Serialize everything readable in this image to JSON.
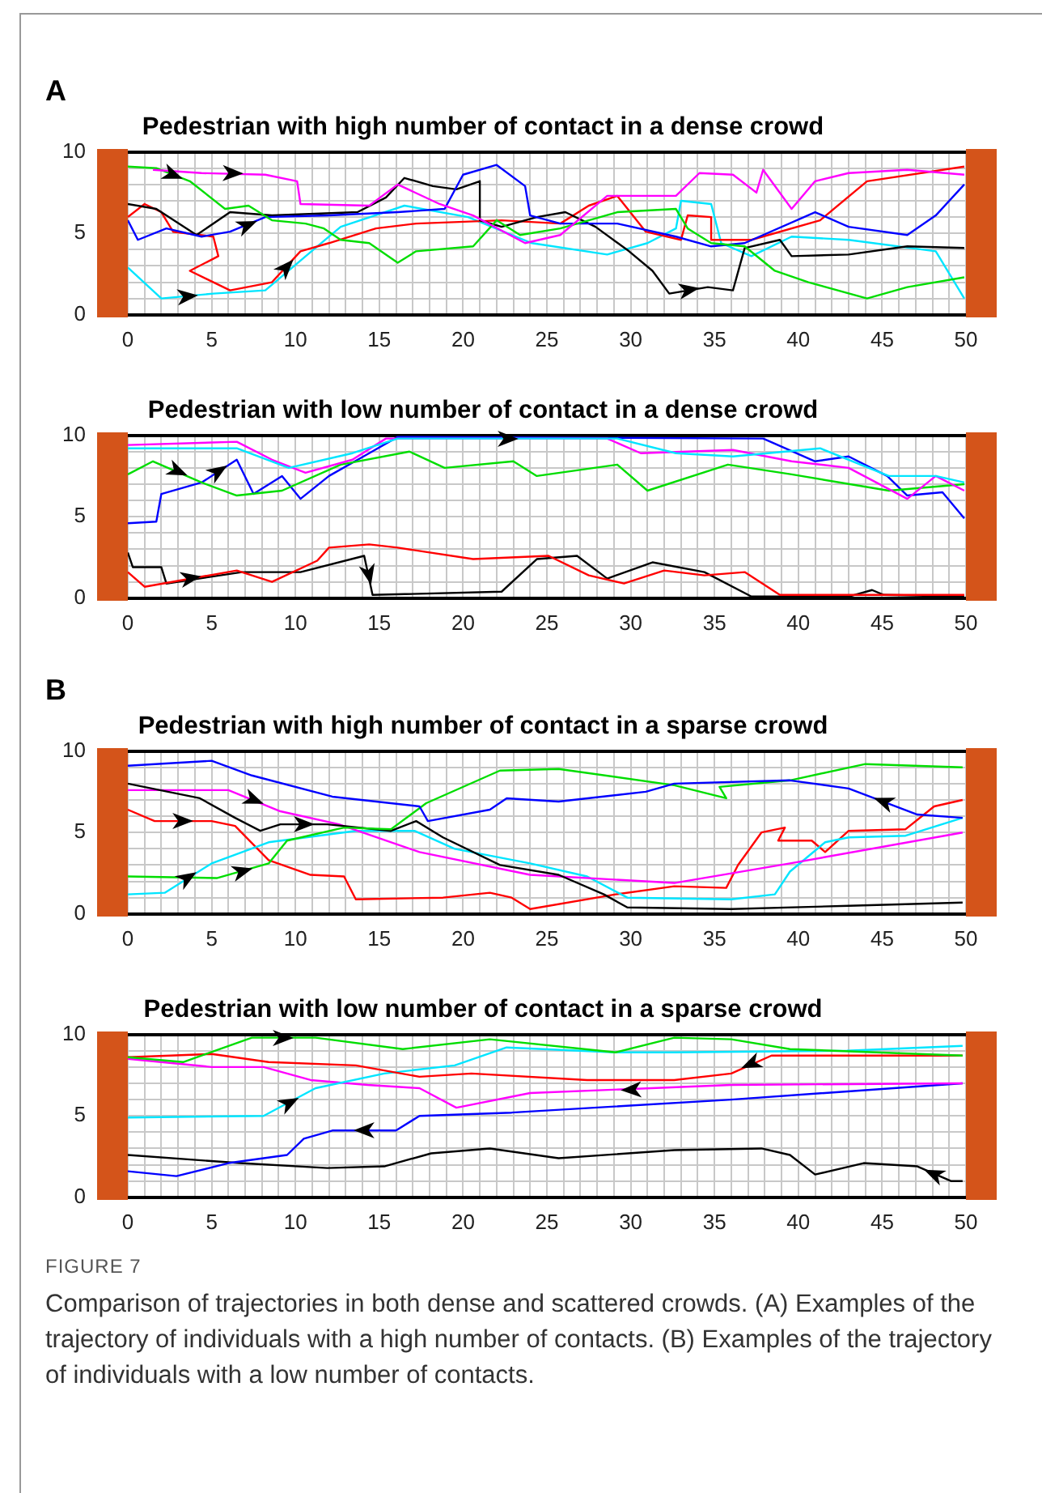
{
  "chart_data": [
    {
      "type": "line",
      "title": "Pedestrian with high number of contact in a dense crowd",
      "annotations": [
        "A"
      ],
      "xlim": [
        0,
        50
      ],
      "ylim": [
        0,
        10
      ],
      "grid": true,
      "legend": false,
      "xticks": [
        0,
        {
          "value": 1,
          "label": null
        },
        {
          "value": 2,
          "label": null
        },
        {
          "value": 3,
          "label": null
        },
        {
          "value": 4,
          "label": null
        },
        5,
        {
          "value": 6,
          "label": null
        },
        {
          "value": 7,
          "label": null
        },
        {
          "value": 8,
          "label": null
        },
        {
          "value": 9,
          "label": null
        },
        10,
        {
          "value": 11,
          "label": null
        },
        {
          "value": 12,
          "label": null
        },
        {
          "value": 13,
          "label": null
        },
        {
          "value": 14,
          "label": null
        },
        15,
        {
          "value": 16,
          "label": null
        },
        {
          "value": 17,
          "label": null
        },
        {
          "value": 18,
          "label": null
        },
        {
          "value": 19,
          "label": null
        },
        20,
        {
          "value": 21,
          "label": null
        },
        {
          "value": 22,
          "label": null
        },
        {
          "value": 23,
          "label": null
        },
        {
          "value": 24,
          "label": null
        },
        25,
        {
          "value": 26,
          "label": null
        },
        {
          "value": 27,
          "label": null
        },
        {
          "value": 28,
          "label": null
        },
        {
          "value": 29,
          "label": null
        },
        30,
        {
          "value": 31,
          "label": null
        },
        {
          "value": 32,
          "label": null
        },
        {
          "value": 33,
          "label": null
        },
        {
          "value": 34,
          "label": null
        },
        35,
        {
          "value": 36,
          "label": null
        },
        {
          "value": 37,
          "label": null
        },
        {
          "value": 38,
          "label": null
        },
        {
          "value": 39,
          "label": null
        },
        40,
        {
          "value": 41,
          "label": null
        },
        {
          "value": 42,
          "label": null
        },
        {
          "value": 43,
          "label": null
        },
        {
          "value": 44,
          "label": null
        },
        45,
        {
          "value": 46,
          "label": null
        },
        {
          "value": 47,
          "label": null
        },
        {
          "value": 48,
          "label": null
        },
        {
          "value": 49,
          "label": null
        },
        50
      ],
      "yticks": [
        0,
        {
          "value": 1,
          "label": null
        },
        {
          "value": 2,
          "label": null
        },
        {
          "value": 3,
          "label": null
        },
        {
          "value": 4,
          "label": null
        },
        5,
        {
          "value": 6,
          "label": null
        },
        {
          "value": 7,
          "label": null
        },
        {
          "value": 8,
          "label": null
        },
        {
          "value": 9,
          "label": null
        },
        10
      ],
      "series": [
        {
          "color": "#ff00ff",
          "x": [
            1.5,
            4.4,
            8.2,
            10.1,
            10.3,
            14.4,
            16.1,
            18.6,
            20.6,
            23.7,
            25.8,
            28.6,
            32.7,
            34.1,
            36.1,
            37.5,
            37.9,
            39.6,
            41,
            43,
            46.5,
            49.9
          ],
          "values": [
            8.9,
            8.7,
            8.6,
            8.2,
            6.8,
            6.7,
            8.0,
            6.8,
            6.1,
            4.4,
            4.9,
            7.3,
            7.3,
            8.7,
            8.6,
            7.5,
            8.9,
            6.5,
            8.2,
            8.7,
            8.9,
            8.6
          ]
        },
        {
          "color": "#00dd00",
          "x": [
            0,
            1.7,
            3.7,
            5.8,
            7.2,
            8.6,
            10.6,
            11.7,
            12.7,
            14.4,
            16.1,
            17.2,
            20.6,
            22,
            23.4,
            25.8,
            29.2,
            32.7,
            33.4,
            34.8,
            36.8,
            38.6,
            40.6,
            44.1,
            46.5,
            49.9
          ],
          "values": [
            9.1,
            9,
            8.2,
            6.5,
            6.7,
            5.8,
            5.6,
            5.3,
            4.6,
            4.4,
            3.2,
            3.9,
            4.2,
            5.8,
            4.9,
            5.3,
            6.3,
            6.5,
            5.3,
            4.4,
            4.2,
            2.7,
            2.0,
            1.0,
            1.7,
            2.3
          ]
        },
        {
          "color": "#0000ff",
          "x": [
            0,
            0.6,
            2.3,
            4.4,
            6.1,
            8.2,
            12,
            16.1,
            18.9,
            20,
            22,
            23.7,
            24,
            25.8,
            29.2,
            32.7,
            34.8,
            36.8,
            41,
            43,
            46.5,
            48.2,
            49.9
          ],
          "values": [
            5.8,
            4.6,
            5.3,
            4.8,
            5.1,
            6.0,
            6.1,
            6.3,
            6.5,
            8.6,
            9.2,
            7.9,
            6.1,
            5.6,
            5.6,
            4.8,
            4.2,
            4.4,
            6.3,
            5.4,
            4.9,
            6.1,
            8.0
          ]
        },
        {
          "color": "#000000",
          "x": [
            0,
            1.7,
            4.1,
            6.1,
            8.6,
            13.7,
            15.4,
            16.5,
            18.2,
            19.6,
            21,
            21,
            22.3,
            24.4,
            26.1,
            27.9,
            29.9,
            31.3,
            32.3,
            34.6,
            36.1,
            36.8,
            38.9,
            39.6,
            43,
            46.5,
            49.9
          ],
          "values": [
            6.8,
            6.5,
            4.9,
            6.3,
            6.1,
            6.3,
            7.2,
            8.4,
            7.9,
            7.7,
            8.2,
            5.8,
            5.4,
            6.0,
            6.3,
            5.4,
            3.9,
            2.7,
            1.3,
            1.7,
            1.5,
            4.1,
            4.6,
            3.6,
            3.7,
            4.2,
            4.1
          ]
        },
        {
          "color": "#ff0000",
          "x": [
            0,
            1,
            2,
            2.7,
            5.1,
            5.4,
            3.7,
            6.1,
            8.6,
            10.3,
            12,
            14.8,
            17.2,
            22.3,
            25.8,
            27.5,
            29.2,
            30.9,
            33,
            33.4,
            34.8,
            34.8,
            37.2,
            41.3,
            44.1,
            49.9
          ],
          "values": [
            6,
            6.8,
            6.3,
            5.1,
            4.8,
            3.6,
            2.7,
            1.5,
            2,
            3.9,
            4.4,
            5.3,
            5.6,
            5.8,
            5.6,
            6.7,
            7.3,
            5.1,
            4.6,
            6.1,
            6.0,
            4.6,
            4.6,
            5.8,
            8.2,
            9.1
          ]
        },
        {
          "color": "#00e5ff",
          "x": [
            0,
            2,
            5.1,
            8.2,
            11.3,
            12.7,
            16.5,
            20.3,
            24.1,
            28.6,
            31,
            32.7,
            33,
            34.8,
            35.4,
            37.2,
            39.6,
            43,
            48.2,
            49.9
          ],
          "values": [
            2.9,
            1,
            1.3,
            1.5,
            4.2,
            5.4,
            6.7,
            6.0,
            4.4,
            3.7,
            4.4,
            5.3,
            7.0,
            6.8,
            4.4,
            3.6,
            4.8,
            4.6,
            3.9,
            1
          ]
        }
      ]
    },
    {
      "type": "line",
      "title": "Pedestrian with low number of contact in a dense crowd",
      "xlim": [
        0,
        50
      ],
      "ylim": [
        0,
        10
      ],
      "grid": true,
      "legend": false,
      "xticks": [
        0,
        {
          "value": 1,
          "label": null
        },
        {
          "value": 2,
          "label": null
        },
        {
          "value": 3,
          "label": null
        },
        {
          "value": 4,
          "label": null
        },
        5,
        {
          "value": 6,
          "label": null
        },
        {
          "value": 7,
          "label": null
        },
        {
          "value": 8,
          "label": null
        },
        {
          "value": 9,
          "label": null
        },
        10,
        {
          "value": 11,
          "label": null
        },
        {
          "value": 12,
          "label": null
        },
        {
          "value": 13,
          "label": null
        },
        {
          "value": 14,
          "label": null
        },
        15,
        {
          "value": 16,
          "label": null
        },
        {
          "value": 17,
          "label": null
        },
        {
          "value": 18,
          "label": null
        },
        {
          "value": 19,
          "label": null
        },
        20,
        {
          "value": 21,
          "label": null
        },
        {
          "value": 22,
          "label": null
        },
        {
          "value": 23,
          "label": null
        },
        {
          "value": 24,
          "label": null
        },
        25,
        {
          "value": 26,
          "label": null
        },
        {
          "value": 27,
          "label": null
        },
        {
          "value": 28,
          "label": null
        },
        {
          "value": 29,
          "label": null
        },
        30,
        {
          "value": 31,
          "label": null
        },
        {
          "value": 32,
          "label": null
        },
        {
          "value": 33,
          "label": null
        },
        {
          "value": 34,
          "label": null
        },
        35,
        {
          "value": 36,
          "label": null
        },
        {
          "value": 37,
          "label": null
        },
        {
          "value": 38,
          "label": null
        },
        {
          "value": 39,
          "label": null
        },
        40,
        {
          "value": 41,
          "label": null
        },
        {
          "value": 42,
          "label": null
        },
        {
          "value": 43,
          "label": null
        },
        {
          "value": 44,
          "label": null
        },
        45,
        {
          "value": 46,
          "label": null
        },
        {
          "value": 47,
          "label": null
        },
        {
          "value": 48,
          "label": null
        },
        {
          "value": 49,
          "label": null
        },
        50
      ],
      "yticks": [
        0,
        {
          "value": 1,
          "label": null
        },
        {
          "value": 2,
          "label": null
        },
        {
          "value": 3,
          "label": null
        },
        {
          "value": 4,
          "label": null
        },
        5,
        {
          "value": 6,
          "label": null
        },
        {
          "value": 7,
          "label": null
        },
        {
          "value": 8,
          "label": null
        },
        {
          "value": 9,
          "label": null
        },
        10
      ],
      "series": [
        {
          "color": "#00e5ff",
          "x": [
            0,
            6.5,
            9.6,
            13.4,
            16.1,
            29.2,
            32.7,
            36.1,
            41.3,
            45.4,
            48.2,
            49.9
          ],
          "values": [
            9.2,
            9.2,
            8.0,
            8.9,
            9.8,
            9.8,
            8.9,
            8.7,
            9.2,
            7.5,
            7.5,
            7.1
          ]
        },
        {
          "color": "#ff00ff",
          "x": [
            0,
            6.5,
            8.6,
            10.6,
            13.4,
            15.4,
            28.6,
            30.6,
            36.1,
            39.6,
            43,
            46.5,
            48.2,
            49.9
          ],
          "values": [
            9.4,
            9.6,
            8.5,
            7.7,
            8.5,
            9.8,
            9.8,
            8.9,
            9.1,
            8.4,
            8.0,
            6.1,
            7.5,
            6.6
          ]
        },
        {
          "color": "#00dd00",
          "x": [
            0,
            1.5,
            4.4,
            6.5,
            9.2,
            12.7,
            16.8,
            18.9,
            23.0,
            24.4,
            29.2,
            31,
            35.8,
            39.6,
            45.4,
            49.9
          ],
          "values": [
            7.6,
            8.4,
            7.1,
            6.3,
            6.6,
            8.2,
            9.0,
            8.0,
            8.4,
            7.5,
            8.2,
            6.6,
            8.2,
            7.6,
            6.6,
            7.0
          ]
        },
        {
          "color": "#0000ff",
          "x": [
            0,
            1.7,
            2,
            4.4,
            6.5,
            7.5,
            9.2,
            10.3,
            12,
            14.4,
            16.1,
            37.9,
            41,
            43,
            45.3,
            46.5,
            48.6,
            49.9
          ],
          "values": [
            4.6,
            4.7,
            6.4,
            7.1,
            8.5,
            6.4,
            7.5,
            6.1,
            7.5,
            8.9,
            9.9,
            9.8,
            8.4,
            8.7,
            7.5,
            6.3,
            6.5,
            4.9
          ]
        },
        {
          "color": "#ff0000",
          "x": [
            0,
            1,
            6.5,
            8.6,
            11.3,
            12,
            14.4,
            16.1,
            20.6,
            25.1,
            27.5,
            29.6,
            32,
            34.4,
            36.8,
            38.9,
            49.9
          ],
          "values": [
            1.6,
            0.7,
            1.7,
            1.0,
            2.3,
            3.1,
            3.3,
            3.1,
            2.4,
            2.6,
            1.4,
            0.9,
            1.7,
            1.4,
            1.6,
            0.2,
            0.2
          ]
        },
        {
          "color": "#000000",
          "x": [
            0,
            0.3,
            2,
            2.3,
            6.8,
            10.3,
            14.1,
            14.6,
            22.3,
            24.4,
            26.8,
            28.6,
            31.3,
            34.4,
            37.2,
            43,
            44.4,
            45.1,
            49.9
          ],
          "values": [
            2.8,
            1.9,
            1.9,
            0.9,
            1.6,
            1.6,
            2.6,
            0.2,
            0.4,
            2.4,
            2.6,
            1.2,
            2.2,
            1.6,
            0.1,
            0.1,
            0.5,
            0.2,
            0.1
          ]
        }
      ]
    },
    {
      "type": "line",
      "title": "Pedestrian with high number of contact in a sparse crowd",
      "annotations": [
        "B"
      ],
      "xlim": [
        0,
        50
      ],
      "ylim": [
        0,
        10
      ],
      "grid": true,
      "legend": false,
      "xticks": [
        0,
        {
          "value": 1,
          "label": null
        },
        {
          "value": 2,
          "label": null
        },
        {
          "value": 3,
          "label": null
        },
        {
          "value": 4,
          "label": null
        },
        5,
        {
          "value": 6,
          "label": null
        },
        {
          "value": 7,
          "label": null
        },
        {
          "value": 8,
          "label": null
        },
        {
          "value": 9,
          "label": null
        },
        10,
        {
          "value": 11,
          "label": null
        },
        {
          "value": 12,
          "label": null
        },
        {
          "value": 13,
          "label": null
        },
        {
          "value": 14,
          "label": null
        },
        15,
        {
          "value": 16,
          "label": null
        },
        {
          "value": 17,
          "label": null
        },
        {
          "value": 18,
          "label": null
        },
        {
          "value": 19,
          "label": null
        },
        20,
        {
          "value": 21,
          "label": null
        },
        {
          "value": 22,
          "label": null
        },
        {
          "value": 23,
          "label": null
        },
        {
          "value": 24,
          "label": null
        },
        25,
        {
          "value": 26,
          "label": null
        },
        {
          "value": 27,
          "label": null
        },
        {
          "value": 28,
          "label": null
        },
        {
          "value": 29,
          "label": null
        },
        30,
        {
          "value": 31,
          "label": null
        },
        {
          "value": 32,
          "label": null
        },
        {
          "value": 33,
          "label": null
        },
        {
          "value": 34,
          "label": null
        },
        35,
        {
          "value": 36,
          "label": null
        },
        {
          "value": 37,
          "label": null
        },
        {
          "value": 38,
          "label": null
        },
        {
          "value": 39,
          "label": null
        },
        40,
        {
          "value": 41,
          "label": null
        },
        {
          "value": 42,
          "label": null
        },
        {
          "value": 43,
          "label": null
        },
        {
          "value": 44,
          "label": null
        },
        45,
        {
          "value": 46,
          "label": null
        },
        {
          "value": 47,
          "label": null
        },
        {
          "value": 48,
          "label": null
        },
        {
          "value": 49,
          "label": null
        },
        50
      ],
      "yticks": [
        0,
        {
          "value": 1,
          "label": null
        },
        {
          "value": 2,
          "label": null
        },
        {
          "value": 3,
          "label": null
        },
        {
          "value": 4,
          "label": null
        },
        5,
        {
          "value": 6,
          "label": null
        },
        {
          "value": 7,
          "label": null
        },
        {
          "value": 8,
          "label": null
        },
        {
          "value": 9,
          "label": null
        },
        10
      ],
      "series": [
        {
          "color": "#0000ff",
          "x": [
            49.8,
            47.1,
            43,
            39.5,
            32.6,
            30.9,
            25.7,
            22.6,
            21.6,
            17.9,
            17.4,
            12.2,
            7.4,
            5,
            0
          ],
          "values": [
            5.9,
            6.1,
            7.7,
            8.2,
            8.0,
            7.5,
            6.9,
            7.1,
            6.4,
            5.7,
            6.6,
            7.2,
            8.5,
            9.4,
            9.1
          ]
        },
        {
          "color": "#00dd00",
          "x": [
            0,
            5.3,
            8.4,
            9.5,
            12.9,
            15.7,
            17.8,
            22.2,
            25.7,
            32.6,
            35.7,
            35.3,
            39.5,
            44,
            49.8
          ],
          "values": [
            2.3,
            2.2,
            3.1,
            4.5,
            5.3,
            5.2,
            6.8,
            8.8,
            8.9,
            7.9,
            7.1,
            7.8,
            8.2,
            9.2,
            9.0
          ]
        },
        {
          "color": "#000000",
          "x": [
            0,
            4.3,
            6.4,
            7.9,
            9.1,
            11.9,
            15.7,
            17.2,
            18.8,
            22.2,
            25.7,
            28.4,
            29.8,
            36,
            43,
            49.8
          ],
          "values": [
            8.0,
            7.1,
            5.9,
            5.1,
            5.5,
            5.5,
            5.1,
            5.7,
            4.7,
            3.0,
            2.4,
            1.2,
            0.4,
            0.3,
            0.5,
            0.7
          ]
        },
        {
          "color": "#ff00ff",
          "x": [
            0,
            6,
            9.1,
            12.6,
            17.4,
            24,
            32.6,
            39.5,
            49.8
          ],
          "values": [
            7.6,
            7.6,
            6.3,
            5.5,
            3.8,
            2.4,
            1.9,
            3.1,
            5.0
          ]
        },
        {
          "color": "#00e5ff",
          "x": [
            0,
            2.2,
            5,
            8.4,
            13.6,
            17.1,
            19.5,
            24,
            27.4,
            29.8,
            36,
            38.6,
            39.5,
            41.6,
            43,
            46.4,
            49.8
          ],
          "values": [
            1.2,
            1.3,
            3.1,
            4.4,
            5.1,
            5.1,
            4.0,
            3.1,
            2.3,
            1.0,
            0.9,
            1.2,
            2.6,
            4.4,
            4.7,
            4.8,
            5.9
          ]
        },
        {
          "color": "#ff0000",
          "x": [
            0,
            1.6,
            5,
            6.4,
            8.4,
            10.9,
            12.9,
            13.6,
            18.8,
            21.6,
            22.9,
            24,
            29.1,
            32.6,
            35.7,
            36.4,
            37.8,
            39.2,
            38.8,
            40.8,
            41.6,
            43,
            46.4,
            48.1,
            49.8
          ],
          "values": [
            6.4,
            5.7,
            5.7,
            5.4,
            3.3,
            2.4,
            2.3,
            0.9,
            1.0,
            1.3,
            1.0,
            0.3,
            1.2,
            1.7,
            1.6,
            3.0,
            5.0,
            5.3,
            4.5,
            4.5,
            3.8,
            5.1,
            5.2,
            6.6,
            7.0
          ]
        }
      ]
    },
    {
      "type": "line",
      "title": "Pedestrian with low number of contact in a sparse crowd",
      "annotations": [
        "FIGURE 7",
        "Comparison of trajectories in both dense and scattered crowds. (A) Examples of the trajectory of individuals with a high number of contacts. (B) Examples of the trajectory of individuals with a low number of contacts."
      ],
      "xlim": [
        0,
        50
      ],
      "ylim": [
        0,
        10
      ],
      "grid": true,
      "legend": false,
      "xticks": [
        0,
        {
          "value": 1,
          "label": null
        },
        {
          "value": 2,
          "label": null
        },
        {
          "value": 3,
          "label": null
        },
        {
          "value": 4,
          "label": null
        },
        5,
        {
          "value": 6,
          "label": null
        },
        {
          "value": 7,
          "label": null
        },
        {
          "value": 8,
          "label": null
        },
        {
          "value": 9,
          "label": null
        },
        10,
        {
          "value": 11,
          "label": null
        },
        {
          "value": 12,
          "label": null
        },
        {
          "value": 13,
          "label": null
        },
        {
          "value": 14,
          "label": null
        },
        15,
        {
          "value": 16,
          "label": null
        },
        {
          "value": 17,
          "label": null
        },
        {
          "value": 18,
          "label": null
        },
        {
          "value": 19,
          "label": null
        },
        20,
        {
          "value": 21,
          "label": null
        },
        {
          "value": 22,
          "label": null
        },
        {
          "value": 23,
          "label": null
        },
        {
          "value": 24,
          "label": null
        },
        25,
        {
          "value": 26,
          "label": null
        },
        {
          "value": 27,
          "label": null
        },
        {
          "value": 28,
          "label": null
        },
        {
          "value": 29,
          "label": null
        },
        30,
        {
          "value": 31,
          "label": null
        },
        {
          "value": 32,
          "label": null
        },
        {
          "value": 33,
          "label": null
        },
        {
          "value": 34,
          "label": null
        },
        35,
        {
          "value": 36,
          "label": null
        },
        {
          "value": 37,
          "label": null
        },
        {
          "value": 38,
          "label": null
        },
        {
          "value": 39,
          "label": null
        },
        40,
        {
          "value": 41,
          "label": null
        },
        {
          "value": 42,
          "label": null
        },
        {
          "value": 43,
          "label": null
        },
        {
          "value": 44,
          "label": null
        },
        45,
        {
          "value": 46,
          "label": null
        },
        {
          "value": 47,
          "label": null
        },
        {
          "value": 48,
          "label": null
        },
        {
          "value": 49,
          "label": null
        },
        50
      ],
      "yticks": [
        0,
        {
          "value": 1,
          "label": null
        },
        {
          "value": 2,
          "label": null
        },
        {
          "value": 3,
          "label": null
        },
        {
          "value": 4,
          "label": null
        },
        5,
        {
          "value": 6,
          "label": null
        },
        {
          "value": 7,
          "label": null
        },
        {
          "value": 8,
          "label": null
        },
        {
          "value": 9,
          "label": null
        },
        10
      ],
      "series": [
        {
          "color": "#00dd00",
          "x": [
            0,
            3.3,
            7.4,
            11.2,
            16.4,
            21.6,
            29.1,
            32.6,
            36,
            39.5,
            49.8
          ],
          "values": [
            8.6,
            8.3,
            9.8,
            9.8,
            9.1,
            9.7,
            8.9,
            9.8,
            9.7,
            9.1,
            8.7
          ]
        },
        {
          "color": "#ff0000",
          "x": [
            49.8,
            38.4,
            36,
            32.6,
            27.4,
            20.5,
            17.4,
            13.6,
            8.4,
            5,
            0
          ],
          "values": [
            8.7,
            8.7,
            7.6,
            7.2,
            7.2,
            7.6,
            7.4,
            8.1,
            8.3,
            8.8,
            8.6
          ]
        },
        {
          "color": "#00e5ff",
          "x": [
            0,
            8.1,
            11.2,
            15.3,
            19.5,
            22.6,
            29.1,
            32.6,
            42.9,
            49.8
          ],
          "values": [
            4.9,
            5.0,
            6.7,
            7.6,
            8.1,
            9.2,
            8.9,
            8.9,
            9.0,
            9.3
          ]
        },
        {
          "color": "#ff00ff",
          "x": [
            49.8,
            36,
            24,
            19.6,
            17.4,
            14.3,
            10.9,
            8.1,
            5,
            0
          ],
          "values": [
            7.0,
            6.9,
            6.4,
            5.5,
            6.7,
            6.9,
            7.2,
            8.0,
            8.0,
            8.5
          ]
        },
        {
          "color": "#0000ff",
          "x": [
            49.8,
            36,
            22.9,
            17.4,
            16,
            12.2,
            10.5,
            9.5,
            6.0,
            2.9,
            0
          ],
          "values": [
            7.0,
            6.0,
            5.2,
            5.0,
            4.1,
            4.1,
            3.6,
            2.6,
            2.1,
            1.3,
            1.6
          ]
        },
        {
          "color": "#000000",
          "x": [
            49.8,
            49.1,
            47.1,
            43.9,
            41.0,
            39.5,
            37.8,
            32.6,
            25.7,
            21.6,
            18.1,
            15.3,
            11.9,
            6.7,
            0
          ],
          "values": [
            1.0,
            1.0,
            1.9,
            2.1,
            1.4,
            2.6,
            3.0,
            2.9,
            2.4,
            3.0,
            2.7,
            1.9,
            1.8,
            2.1,
            2.6
          ]
        }
      ]
    }
  ]
}
